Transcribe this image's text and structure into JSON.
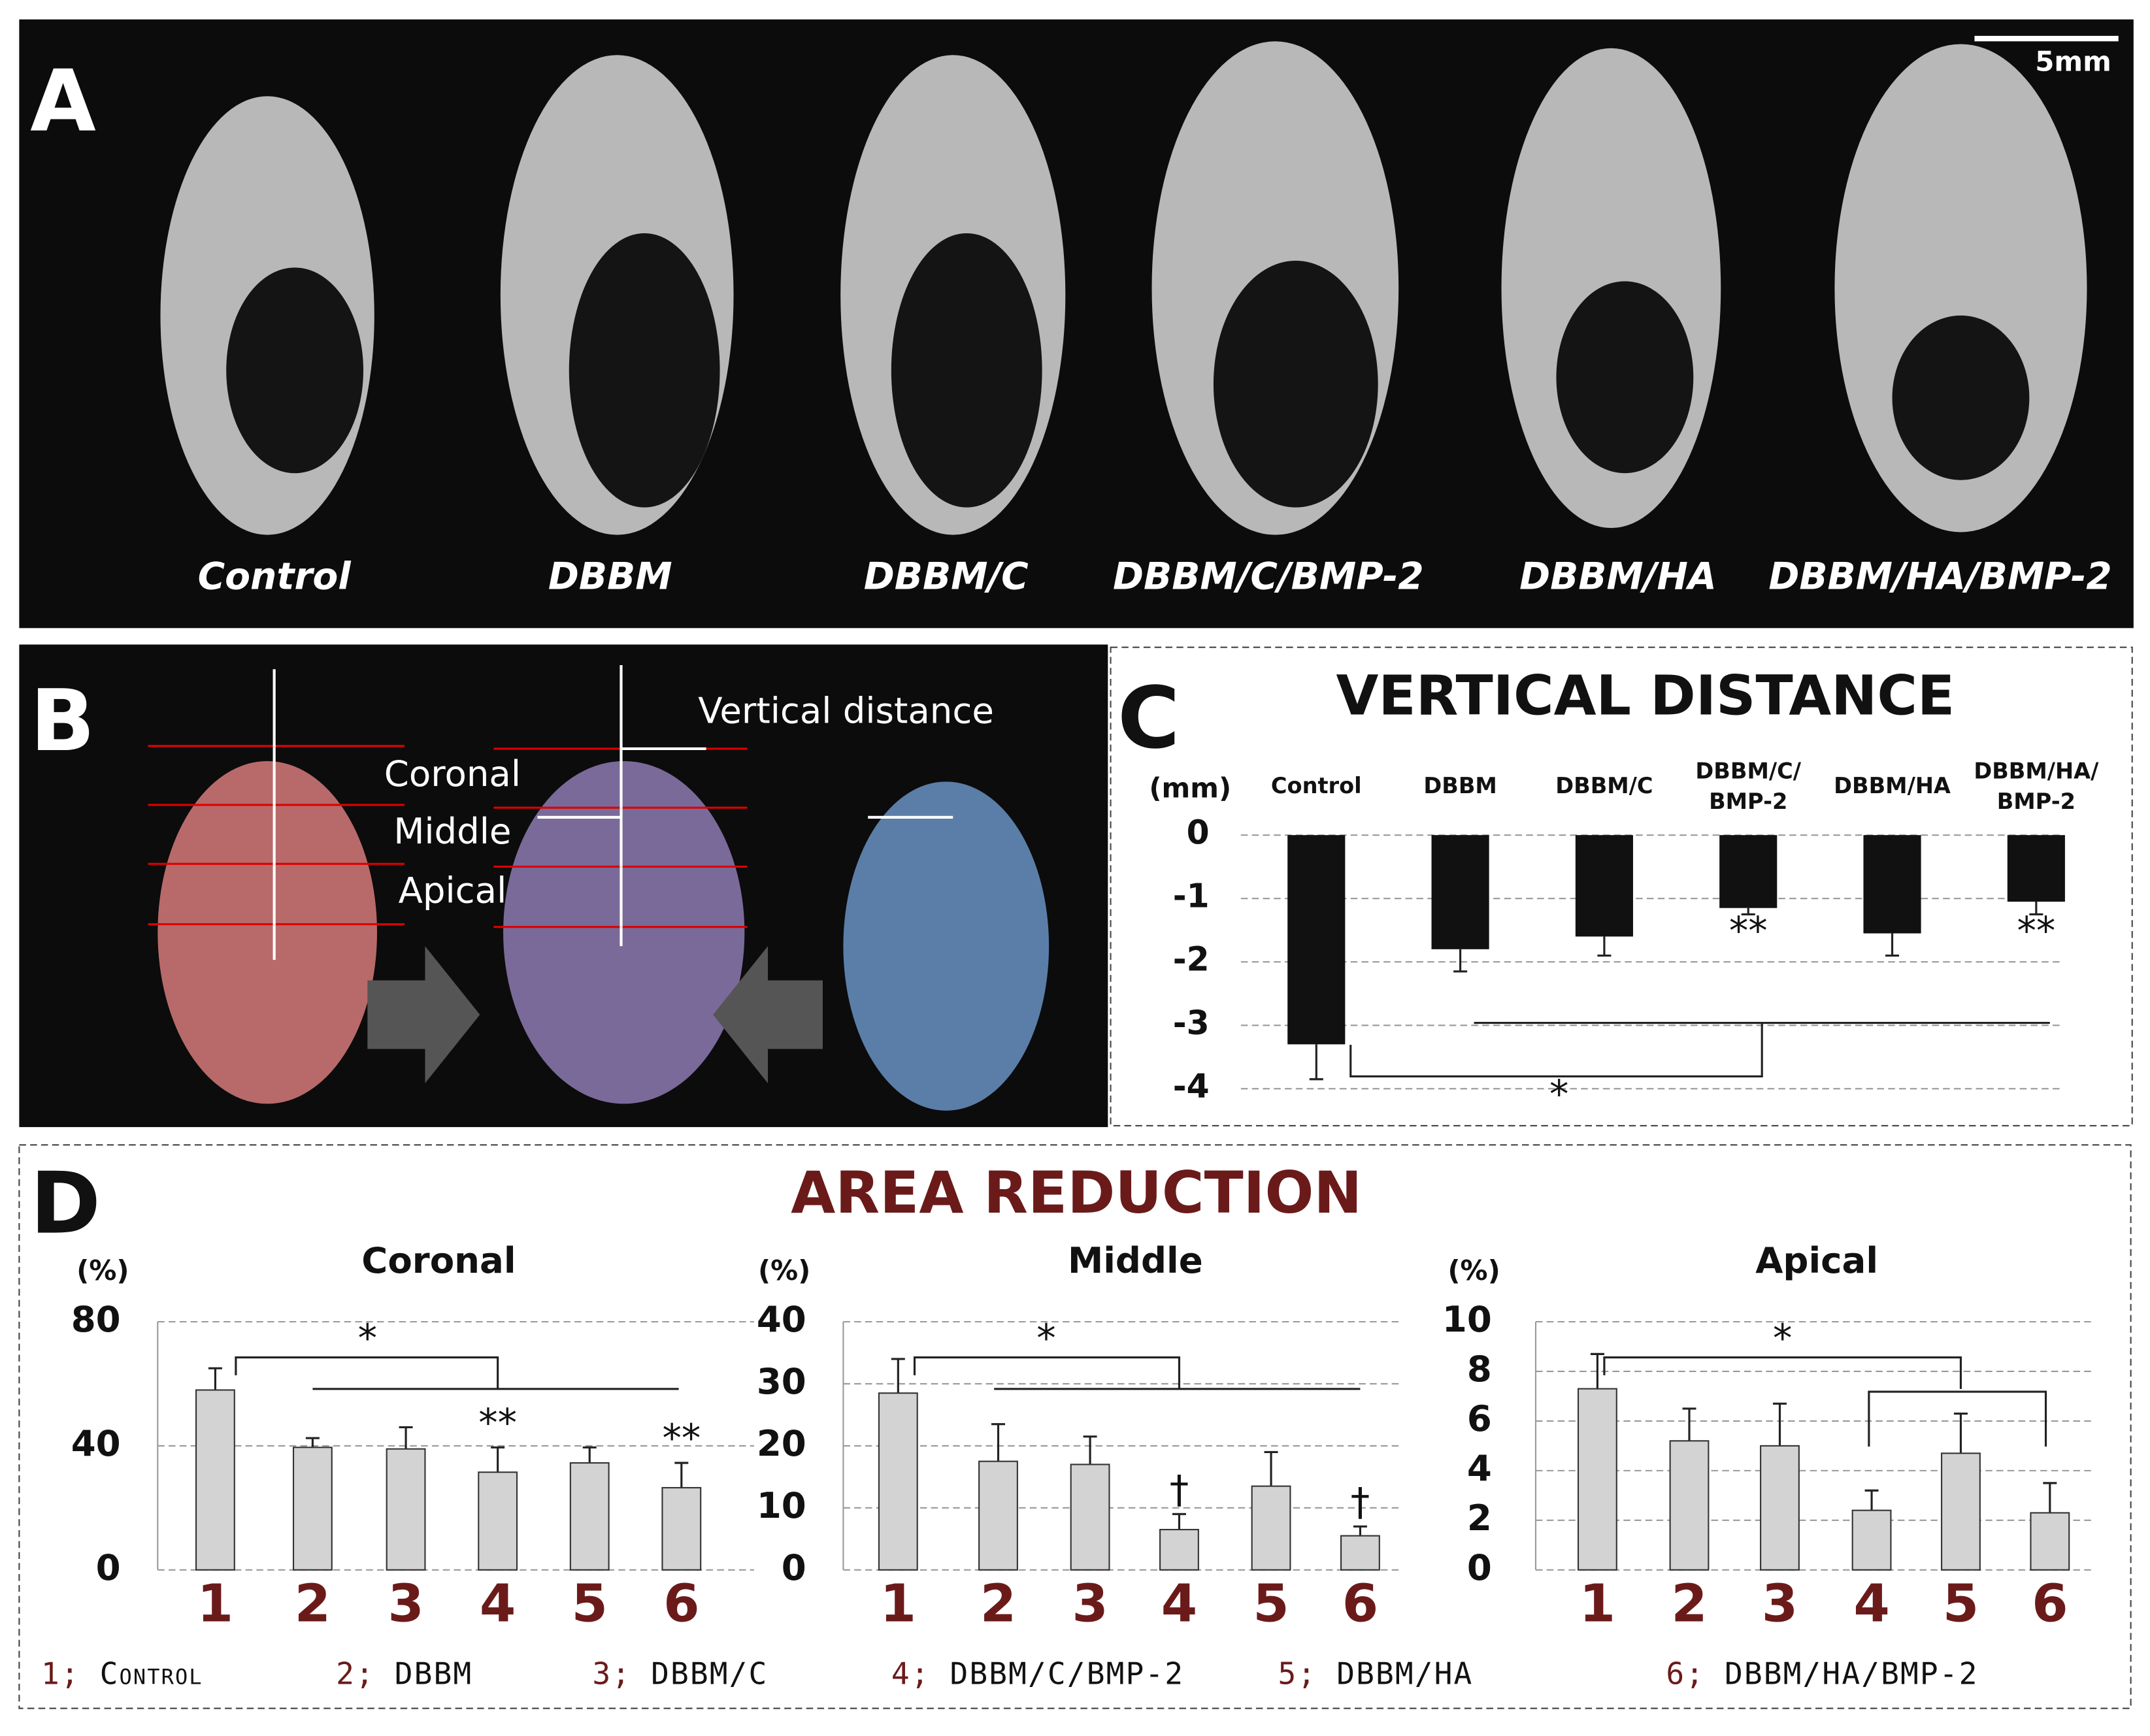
{
  "panel_a": {
    "letter": "A",
    "scale_bar": "5mm",
    "labels": [
      "Control",
      "DBBM",
      "DBBM/C",
      "DBBM/C/BMP-2",
      "DBBM/HA",
      "DBBM/HA/BMP-2"
    ]
  },
  "panel_b": {
    "letter": "B",
    "labels": [
      "Coronal",
      "Middle",
      "Apical"
    ],
    "vertical_distance": "Vertical distance"
  },
  "panel_c": {
    "letter": "C"
  },
  "panel_d": {
    "letter": "D",
    "title": "AREA REDUCTION",
    "legend": [
      "1; Control",
      "2; DBBM",
      "3; DBBM/C",
      "4; DBBM/C/BMP-2",
      "5; DBBM/HA",
      "6; DBBM/HA/BMP-2"
    ]
  },
  "chart_data": [
    {
      "type": "bar",
      "title": "VERTICAL DISTANCE",
      "y_label": "(mm)",
      "categories": [
        "Control",
        "DBBM",
        "DBBM/C",
        "DBBM/C/BMP-2",
        "DBBM/HA",
        "DBBM/HA/BMP-2"
      ],
      "values": [
        -3.3,
        -1.8,
        -1.6,
        -1.15,
        -1.55,
        -1.05
      ],
      "errors": [
        0.55,
        0.35,
        0.3,
        0.1,
        0.35,
        0.2
      ],
      "significance": [
        null,
        null,
        null,
        "**",
        null,
        "**"
      ],
      "annotations": [
        "*"
      ],
      "color": "#111111",
      "ylim": [
        -4,
        0
      ],
      "yticks": [
        0,
        -1,
        -2,
        -3,
        -4
      ],
      "grid": true
    },
    {
      "type": "bar",
      "title": "Coronal",
      "y_label": "(%)",
      "categories": [
        "1",
        "2",
        "3",
        "4",
        "5",
        "6"
      ],
      "values": [
        58,
        39.5,
        39,
        31.5,
        34.5,
        26.5
      ],
      "errors": [
        7,
        3,
        7,
        8,
        5,
        8
      ],
      "significance": [
        null,
        null,
        null,
        "**",
        null,
        "**"
      ],
      "annotations": [
        "*"
      ],
      "color": "#d3d3d3",
      "category_color": "#6b1a1a",
      "ylim": [
        0,
        80
      ],
      "yticks": [
        0,
        40,
        80
      ],
      "grid": true
    },
    {
      "type": "bar",
      "title": "Middle",
      "y_label": "(%)",
      "categories": [
        "1",
        "2",
        "3",
        "4",
        "5",
        "6"
      ],
      "values": [
        28.5,
        17.5,
        17,
        6.5,
        13.5,
        5.5
      ],
      "errors": [
        5.5,
        6,
        4.5,
        2.5,
        5.5,
        1.5
      ],
      "significance": [
        null,
        null,
        null,
        "†",
        null,
        "†"
      ],
      "annotations": [
        "*"
      ],
      "color": "#d3d3d3",
      "category_color": "#6b1a1a",
      "ylim": [
        0,
        40
      ],
      "yticks": [
        0,
        10,
        20,
        30,
        40
      ],
      "grid": true
    },
    {
      "type": "bar",
      "title": "Apical",
      "y_label": "(%)",
      "categories": [
        "1",
        "2",
        "3",
        "4",
        "5",
        "6"
      ],
      "values": [
        7.3,
        5.2,
        5,
        2.4,
        4.7,
        2.3
      ],
      "errors": [
        1.4,
        1.3,
        1.7,
        0.8,
        1.6,
        1.2
      ],
      "significance": [
        null,
        null,
        null,
        null,
        null,
        null
      ],
      "annotations": [
        "*"
      ],
      "color": "#d3d3d3",
      "category_color": "#6b1a1a",
      "ylim": [
        0,
        10
      ],
      "yticks": [
        0,
        2,
        4,
        6,
        8,
        10
      ],
      "grid": true
    }
  ]
}
